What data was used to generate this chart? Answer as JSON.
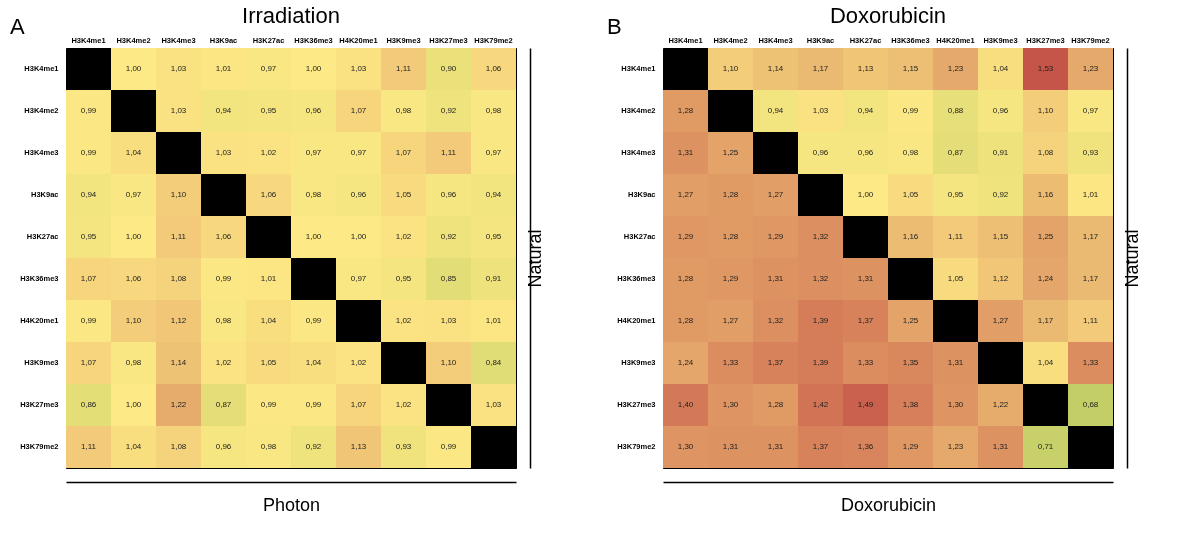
{
  "chart_data": [
    {
      "type": "heatmap",
      "title": "Irradiation",
      "xlabel": "Photon",
      "y2label": "Natural",
      "annotations": [
        "A"
      ],
      "categories": [
        "H3K4me1",
        "H3K4me2",
        "H3K4me3",
        "H3K9ac",
        "H3K27ac",
        "H3K36me3",
        "H4K20me1",
        "H3K9me3",
        "H3K27me3",
        "H3K79me2"
      ],
      "y_categories": [
        "H3K4me1",
        "H3K4me2",
        "H3K4me3",
        "H3K9ac",
        "H3K27ac",
        "H3K36me3",
        "H4K20me1",
        "H3K9me3",
        "H3K27me3",
        "H3K79me2"
      ],
      "cells": [
        [
          null,
          1.0,
          1.03,
          1.01,
          0.97,
          1.0,
          1.03,
          1.11,
          0.9,
          1.06
        ],
        [
          0.99,
          null,
          1.03,
          0.94,
          0.95,
          0.96,
          1.07,
          0.98,
          0.92,
          0.98
        ],
        [
          0.99,
          1.04,
          null,
          1.03,
          1.02,
          0.97,
          0.97,
          1.07,
          1.11,
          0.97
        ],
        [
          0.94,
          0.97,
          1.1,
          null,
          1.06,
          0.98,
          0.96,
          1.05,
          0.96,
          0.94
        ],
        [
          0.95,
          1.0,
          1.11,
          1.06,
          null,
          1.0,
          1.0,
          1.02,
          0.92,
          0.95
        ],
        [
          1.07,
          1.06,
          1.08,
          0.99,
          1.01,
          null,
          0.97,
          0.95,
          0.85,
          0.91
        ],
        [
          0.99,
          1.1,
          1.12,
          0.98,
          1.04,
          0.99,
          null,
          1.02,
          1.03,
          1.01
        ],
        [
          1.07,
          0.98,
          1.14,
          1.02,
          1.05,
          1.04,
          1.02,
          null,
          1.1,
          0.84
        ],
        [
          0.86,
          1.0,
          1.22,
          0.87,
          0.99,
          0.99,
          1.07,
          1.02,
          null,
          1.03
        ],
        [
          1.11,
          1.04,
          1.08,
          0.96,
          0.98,
          0.92,
          1.13,
          0.93,
          0.99,
          null
        ]
      ],
      "cell_labels": [
        [
          null,
          "1,00",
          "1,03",
          "1,01",
          "0,97",
          "1,00",
          "1,03",
          "1,11",
          "0,90",
          "1,06"
        ],
        [
          "0,99",
          null,
          "1,03",
          "0,94",
          "0,95",
          "0,96",
          "1,07",
          "0,98",
          "0,92",
          "0,98"
        ],
        [
          "0,99",
          "1,04",
          null,
          "1,03",
          "1,02",
          "0,97",
          "0,97",
          "1,07",
          "1,11",
          "0,97"
        ],
        [
          "0,94",
          "0,97",
          "1,10",
          null,
          "1,06",
          "0,98",
          "0,96",
          "1,05",
          "0,96",
          "0,94"
        ],
        [
          "0,95",
          "1,00",
          "1,11",
          "1,06",
          null,
          "1,00",
          "1,00",
          "1,02",
          "0,92",
          "0,95"
        ],
        [
          "1,07",
          "1,06",
          "1,08",
          "0,99",
          "1,01",
          null,
          "0,97",
          "0,95",
          "0,85",
          "0,91"
        ],
        [
          "0,99",
          "1,10",
          "1,12",
          "0,98",
          "1,04",
          "0,99",
          null,
          "1,02",
          "1,03",
          "1,01"
        ],
        [
          "1,07",
          "0,98",
          "1,14",
          "1,02",
          "1,05",
          "1,04",
          "1,02",
          null,
          "1,10",
          "0,84"
        ],
        [
          "0,86",
          "1,00",
          "1,22",
          "0,87",
          "0,99",
          "0,99",
          "1,07",
          "1,02",
          null,
          "1,03"
        ],
        [
          "1,11",
          "1,04",
          "1,08",
          "0,96",
          "0,98",
          "0,92",
          "1,13",
          "0,93",
          "0,99",
          null
        ]
      ]
    },
    {
      "type": "heatmap",
      "title": "Doxorubicin",
      "xlabel": "Doxorubicin",
      "y2label": "Natural",
      "annotations": [
        "B"
      ],
      "categories": [
        "H3K4me1",
        "H3K4me2",
        "H3K4me3",
        "H3K9ac",
        "H3K27ac",
        "H3K36me3",
        "H4K20me1",
        "H3K9me3",
        "H3K27me3",
        "H3K79me2"
      ],
      "y_categories": [
        "H3K4me1",
        "H3K4me2",
        "H3K4me3",
        "H3K9ac",
        "H3K27ac",
        "H3K36me3",
        "H4K20me1",
        "H3K9me3",
        "H3K27me3",
        "H3K79me2"
      ],
      "cells": [
        [
          null,
          1.1,
          1.14,
          1.17,
          1.13,
          1.15,
          1.23,
          1.04,
          1.53,
          1.23
        ],
        [
          1.28,
          null,
          0.94,
          1.03,
          0.94,
          0.99,
          0.88,
          0.96,
          1.1,
          0.97
        ],
        [
          1.31,
          1.25,
          null,
          0.96,
          0.96,
          0.98,
          0.87,
          0.91,
          1.08,
          0.93
        ],
        [
          1.27,
          1.28,
          1.27,
          null,
          1.0,
          1.05,
          0.95,
          0.92,
          1.16,
          1.01
        ],
        [
          1.29,
          1.28,
          1.29,
          1.32,
          null,
          1.16,
          1.11,
          1.15,
          1.25,
          1.17
        ],
        [
          1.28,
          1.29,
          1.31,
          1.32,
          1.31,
          null,
          1.05,
          1.12,
          1.24,
          1.17
        ],
        [
          1.28,
          1.27,
          1.32,
          1.39,
          1.37,
          1.25,
          null,
          1.27,
          1.17,
          1.11
        ],
        [
          1.24,
          1.33,
          1.37,
          1.39,
          1.33,
          1.35,
          1.31,
          null,
          1.04,
          1.33
        ],
        [
          1.4,
          1.3,
          1.28,
          1.42,
          1.49,
          1.38,
          1.3,
          1.22,
          null,
          0.68
        ],
        [
          1.3,
          1.31,
          1.31,
          1.37,
          1.36,
          1.29,
          1.23,
          1.31,
          0.71,
          null
        ]
      ],
      "cell_labels": [
        [
          null,
          "1,10",
          "1,14",
          "1,17",
          "1,13",
          "1,15",
          "1,23",
          "1,04",
          "1,53",
          "1,23"
        ],
        [
          "1,28",
          null,
          "0,94",
          "1,03",
          "0,94",
          "0,99",
          "0,88",
          "0,96",
          "1,10",
          "0,97"
        ],
        [
          "1,31",
          "1,25",
          null,
          "0,96",
          "0,96",
          "0,98",
          "0,87",
          "0,91",
          "1,08",
          "0,93"
        ],
        [
          "1,27",
          "1,28",
          "1,27",
          null,
          "1,00",
          "1,05",
          "0,95",
          "0,92",
          "1,16",
          "1,01"
        ],
        [
          "1,29",
          "1,28",
          "1,29",
          "1,32",
          null,
          "1,16",
          "1,11",
          "1,15",
          "1,25",
          "1,17"
        ],
        [
          "1,28",
          "1,29",
          "1,31",
          "1,32",
          "1,31",
          null,
          "1,05",
          "1,12",
          "1,24",
          "1,17"
        ],
        [
          "1,28",
          "1,27",
          "1,32",
          "1,39",
          "1,37",
          "1,25",
          null,
          "1,27",
          "1,17",
          "1,11"
        ],
        [
          "1,24",
          "1,33",
          "1,37",
          "1,39",
          "1,33",
          "1,35",
          "1,31",
          null,
          "1,04",
          "1,33"
        ],
        [
          "1,40",
          "1,30",
          "1,28",
          "1,42",
          "1,49",
          "1,38",
          "1,30",
          "1,22",
          null,
          "0,68"
        ],
        [
          "1,30",
          "1,31",
          "1,31",
          "1,37",
          "1,36",
          "1,29",
          "1,23",
          "1,31",
          "0,71",
          null
        ]
      ]
    }
  ]
}
